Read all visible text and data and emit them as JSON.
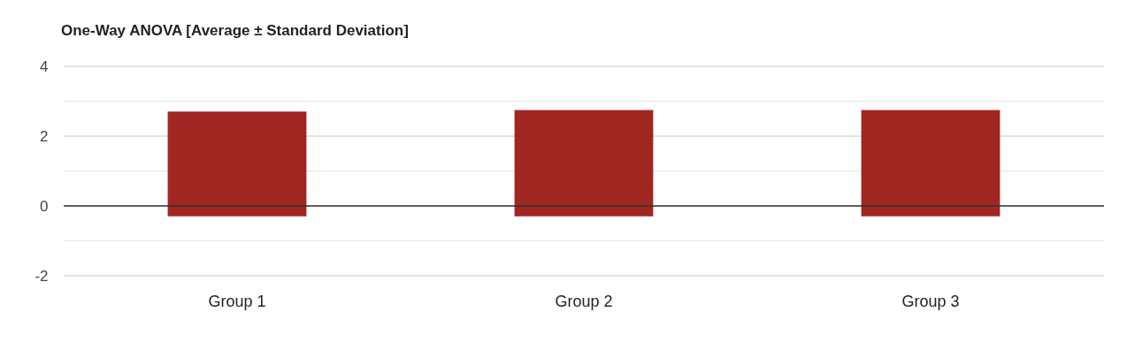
{
  "chart_data": {
    "type": "bar",
    "title": "One-Way ANOVA [Average ± Standard Deviation]",
    "categories": [
      "Group 1",
      "Group 2",
      "Group 3"
    ],
    "values": [
      3.0,
      3.05,
      3.05
    ],
    "base": [
      -0.3,
      -0.3,
      -0.3
    ],
    "color": "#a02622",
    "ylim": [
      -2,
      4
    ],
    "yticks": [
      -2,
      {
        "value": -1,
        "label": null
      },
      0,
      {
        "value": 1,
        "label": null
      },
      2,
      {
        "value": 3,
        "label": null
      },
      4
    ],
    "ref_lines": [
      {
        "axis": "y",
        "value": 0,
        "color": "#333333"
      }
    ],
    "grid": true
  }
}
